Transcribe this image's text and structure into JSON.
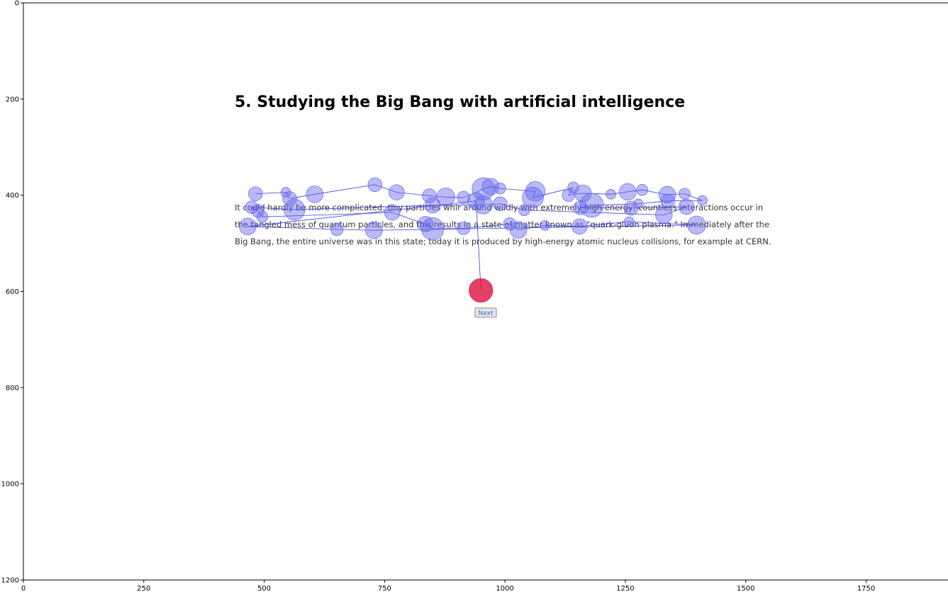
{
  "stimulus": {
    "title": "5. Studying the Big Bang with artificial intelligence",
    "paragraph_lines": [
      "It could hardly be more complicated: tiny particles whir around wildly with extremely high energy, countless interactions occur in",
      "the tangled mess of quantum particles, and this results in a state of matter known as \"quark-gluon plasma.\" Immediately after the",
      "Big Bang, the entire universe was in this state; today it is produced by high-energy atomic nucleus collisions, for example at CERN."
    ],
    "next_button_label": "Next"
  },
  "chart_data": {
    "type": "scatter",
    "title": "",
    "xlabel": "",
    "ylabel": "",
    "xlim": [
      0,
      1920
    ],
    "ylim": [
      1200,
      0
    ],
    "x_ticks": [
      0,
      250,
      500,
      750,
      1000,
      1250,
      1500,
      1750
    ],
    "y_ticks": [
      0,
      200,
      400,
      600,
      800,
      1000,
      1200
    ],
    "grid": false,
    "series": [
      {
        "marker_color": "#6666ee",
        "line_color": "#2222dd",
        "points": [
          {
            "x": 482,
            "y": 397,
            "r": 10
          },
          {
            "x": 545,
            "y": 394,
            "r": 7
          },
          {
            "x": 553,
            "y": 407,
            "r": 10
          },
          {
            "x": 605,
            "y": 398,
            "r": 12
          },
          {
            "x": 730,
            "y": 378,
            "r": 10
          },
          {
            "x": 775,
            "y": 394,
            "r": 11
          },
          {
            "x": 843,
            "y": 401,
            "r": 10
          },
          {
            "x": 877,
            "y": 404,
            "r": 13
          },
          {
            "x": 914,
            "y": 405,
            "r": 9
          },
          {
            "x": 955,
            "y": 387,
            "r": 16
          },
          {
            "x": 970,
            "y": 382,
            "r": 12
          },
          {
            "x": 990,
            "y": 386,
            "r": 8
          },
          {
            "x": 1063,
            "y": 392,
            "r": 14
          },
          {
            "x": 1058,
            "y": 405,
            "r": 15
          },
          {
            "x": 1142,
            "y": 384,
            "r": 8
          },
          {
            "x": 1132,
            "y": 400,
            "r": 9
          },
          {
            "x": 1162,
            "y": 396,
            "r": 12
          },
          {
            "x": 1220,
            "y": 398,
            "r": 7
          },
          {
            "x": 1255,
            "y": 393,
            "r": 12
          },
          {
            "x": 1285,
            "y": 389,
            "r": 8
          },
          {
            "x": 1337,
            "y": 399,
            "r": 12
          },
          {
            "x": 1373,
            "y": 397,
            "r": 8
          },
          {
            "x": 1410,
            "y": 411,
            "r": 7
          },
          {
            "x": 1338,
            "y": 412,
            "r": 10
          },
          {
            "x": 1277,
            "y": 418,
            "r": 7
          },
          {
            "x": 1180,
            "y": 421,
            "r": 17
          },
          {
            "x": 1157,
            "y": 426,
            "r": 10
          },
          {
            "x": 1262,
            "y": 427,
            "r": 10
          },
          {
            "x": 1377,
            "y": 424,
            "r": 11
          },
          {
            "x": 1330,
            "y": 441,
            "r": 12
          },
          {
            "x": 1040,
            "y": 431,
            "r": 8
          },
          {
            "x": 990,
            "y": 418,
            "r": 10
          },
          {
            "x": 955,
            "y": 420,
            "r": 13
          },
          {
            "x": 850,
            "y": 421,
            "r": 11
          },
          {
            "x": 563,
            "y": 430,
            "r": 15
          },
          {
            "x": 474,
            "y": 425,
            "r": 9
          },
          {
            "x": 487,
            "y": 433,
            "r": 9
          },
          {
            "x": 496,
            "y": 445,
            "r": 8
          },
          {
            "x": 766,
            "y": 436,
            "r": 11
          },
          {
            "x": 835,
            "y": 460,
            "r": 11
          },
          {
            "x": 850,
            "y": 470,
            "r": 16
          },
          {
            "x": 914,
            "y": 469,
            "r": 9
          },
          {
            "x": 1010,
            "y": 460,
            "r": 9
          },
          {
            "x": 1028,
            "y": 472,
            "r": 12
          },
          {
            "x": 1083,
            "y": 463,
            "r": 7
          },
          {
            "x": 1155,
            "y": 465,
            "r": 11
          },
          {
            "x": 1258,
            "y": 455,
            "r": 7
          },
          {
            "x": 1398,
            "y": 462,
            "r": 13
          },
          {
            "x": 728,
            "y": 473,
            "r": 12
          },
          {
            "x": 651,
            "y": 471,
            "r": 9
          },
          {
            "x": 466,
            "y": 465,
            "r": 12
          },
          {
            "x": 940,
            "y": 412,
            "r": 12
          }
        ]
      },
      {
        "marker_color": "#dd1144",
        "points": [
          {
            "x": 950,
            "y": 598,
            "r": 17
          }
        ]
      }
    ]
  }
}
